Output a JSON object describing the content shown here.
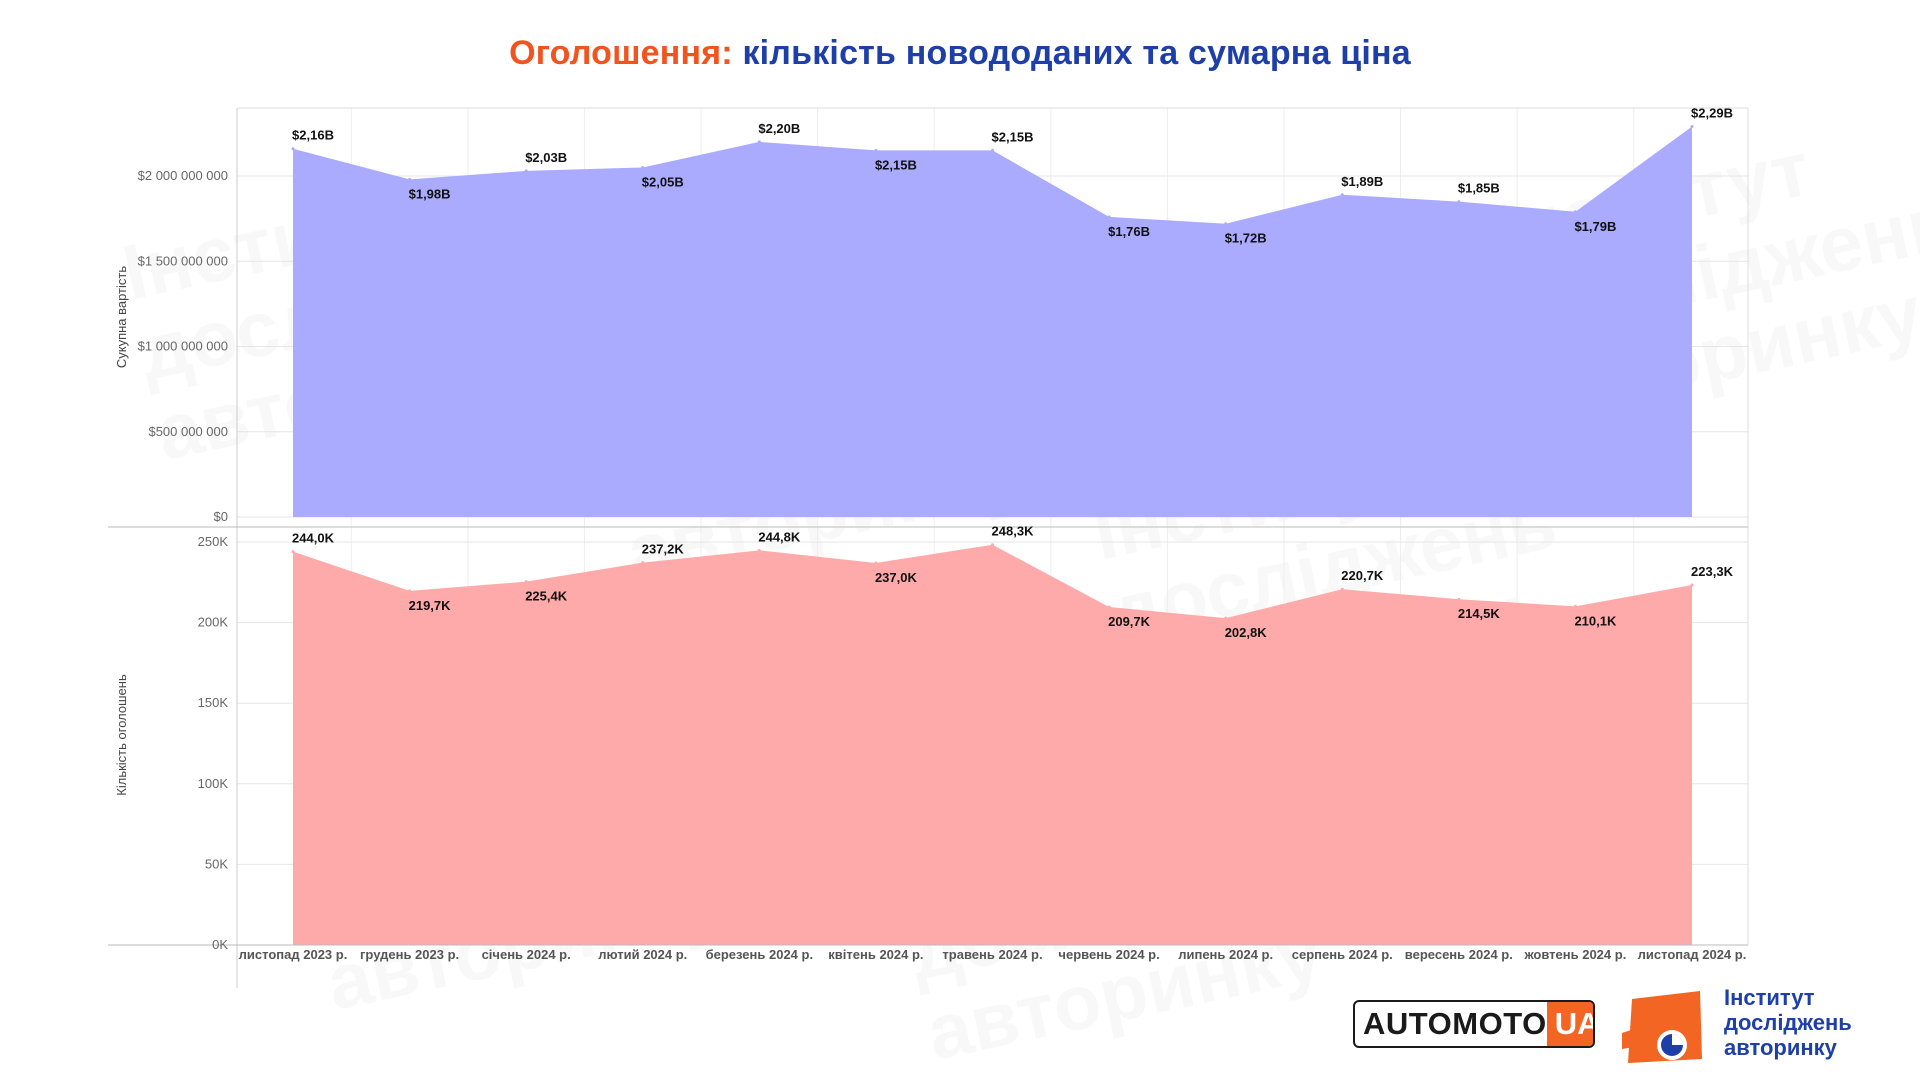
{
  "title": {
    "part1": "Оголошення:",
    "part2": "кількість новододаних та сумарна ціна"
  },
  "watermark": [
    "Інститут",
    "досліджень",
    "авторинку"
  ],
  "chart_data": [
    {
      "type": "area",
      "categories": [
        "листопад 2023 р.",
        "грудень 2023 р.",
        "січень 2024 р.",
        "лютий 2024 р.",
        "березень 2024 р.",
        "квітень 2024 р.",
        "травень 2024 р.",
        "червень 2024 р.",
        "липень 2024 р.",
        "серпень 2024 р.",
        "вересень 2024 р.",
        "жовтень 2024 р.",
        "листопад 2024 р."
      ],
      "ylabel": "Сукупна вартість",
      "ylim": [
        0,
        2400000000
      ],
      "yticks": [
        {
          "value": 0,
          "label": "$0"
        },
        {
          "value": 500000000,
          "label": "$500 000 000"
        },
        {
          "value": 1000000000,
          "label": "$1 000 000 000"
        },
        {
          "value": 1500000000,
          "label": "$1 500 000 000"
        },
        {
          "value": 2000000000,
          "label": "$2 000 000 000"
        }
      ],
      "series": [
        {
          "color": "#aaaaff",
          "values": [
            2160000000,
            1980000000,
            2030000000,
            2050000000,
            2200000000,
            2150000000,
            2150000000,
            1760000000,
            1720000000,
            1890000000,
            1850000000,
            1790000000,
            2290000000
          ],
          "labels": [
            "$2,16B",
            "$1,98B",
            "$2,03B",
            "$2,05B",
            "$2,20B",
            "$2,15B",
            "$2,15B",
            "$1,76B",
            "$1,72B",
            "$1,89B",
            "$1,85B",
            "$1,79B",
            "$2,29B"
          ]
        }
      ],
      "grid": true
    },
    {
      "type": "area",
      "categories": [
        "листопад 2023 р.",
        "грудень 2023 р.",
        "січень 2024 р.",
        "лютий 2024 р.",
        "березень 2024 р.",
        "квітень 2024 р.",
        "травень 2024 р.",
        "червень 2024 р.",
        "липень 2024 р.",
        "серпень 2024 р.",
        "вересень 2024 р.",
        "жовтень 2024 р.",
        "листопад 2024 р."
      ],
      "ylabel": "Кількість оголошень",
      "ylim": [
        0,
        255000
      ],
      "yticks": [
        {
          "value": 0,
          "label": "0K"
        },
        {
          "value": 50000,
          "label": "50K"
        },
        {
          "value": 100000,
          "label": "100K"
        },
        {
          "value": 150000,
          "label": "150K"
        },
        {
          "value": 200000,
          "label": "200K"
        },
        {
          "value": 250000,
          "label": "250K"
        }
      ],
      "series": [
        {
          "color": "#ffaaaa",
          "values": [
            244000,
            219700,
            225400,
            237200,
            244800,
            237000,
            248300,
            209700,
            202800,
            220700,
            214500,
            210100,
            223300
          ],
          "labels": [
            "244,0K",
            "219,7K",
            "225,4K",
            "237,2K",
            "244,8K",
            "237,0K",
            "248,3K",
            "209,7K",
            "202,8K",
            "220,7K",
            "214,5K",
            "210,1K",
            "223,3K"
          ]
        }
      ],
      "grid": true
    }
  ],
  "logos": {
    "automoto_main": "AUTOMOTO",
    "automoto_ua": "UA",
    "institute": [
      "Інститут",
      "досліджень",
      "авторинку"
    ],
    "institute_colors": {
      "orange": "#f26522",
      "blue": "#1f3fa8"
    }
  }
}
